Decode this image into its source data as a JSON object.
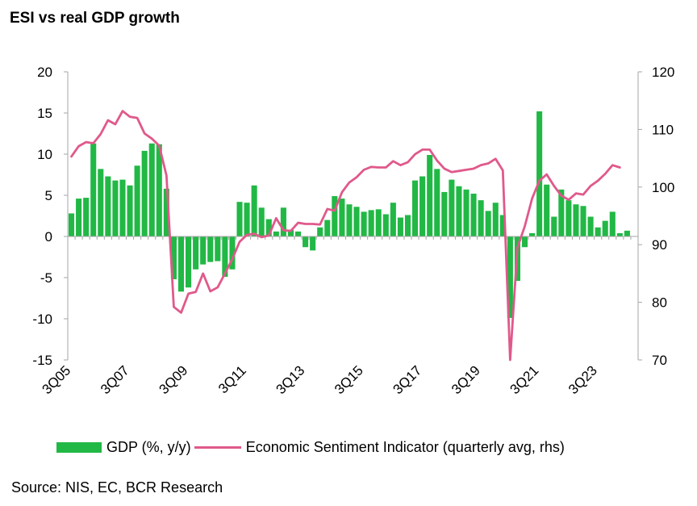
{
  "title": "ESI vs real GDP growth",
  "source": "Source: NIS, EC, BCR Research",
  "colors": {
    "gdp": "#21b845",
    "esi": "#e0598b",
    "axis": "#a6a6a6"
  },
  "chart_data": {
    "type": "bar+line",
    "title": "ESI vs real GDP growth",
    "x_tick_labels": [
      "3Q05",
      "3Q07",
      "3Q09",
      "3Q11",
      "3Q13",
      "3Q15",
      "3Q17",
      "3Q19",
      "3Q21",
      "3Q23"
    ],
    "x_tick_step": 8,
    "ylim_left": [
      -15,
      20
    ],
    "yticks_left": [
      -15,
      -10,
      -5,
      0,
      5,
      10,
      15,
      20
    ],
    "ylim_right": [
      70,
      120
    ],
    "yticks_right": [
      70,
      80,
      90,
      100,
      110,
      120
    ],
    "legend_position": "bottom",
    "grid": false,
    "series": [
      {
        "name": "GDP (%, y/y)",
        "type": "bar",
        "axis": "left",
        "values": [
          2.8,
          4.6,
          4.7,
          11.3,
          8.2,
          7.3,
          6.8,
          6.9,
          6.2,
          8.6,
          10.4,
          11.3,
          11.2,
          5.8,
          -5.2,
          -6.7,
          -6.2,
          -4.0,
          -3.4,
          -3.1,
          -3.0,
          -4.9,
          -4.0,
          4.2,
          4.1,
          6.2,
          3.5,
          2.1,
          0.6,
          3.5,
          0.8,
          0.6,
          -1.3,
          -1.7,
          1.1,
          2.0,
          4.9,
          4.6,
          3.9,
          3.6,
          3.0,
          3.2,
          3.3,
          2.7,
          4.1,
          2.3,
          2.6,
          6.8,
          7.3,
          9.9,
          8.2,
          5.4,
          6.9,
          6.1,
          5.7,
          5.2,
          4.4,
          3.1,
          4.1,
          2.6,
          -9.9,
          -5.4,
          -1.3,
          0.4,
          15.2,
          6.3,
          2.4,
          5.7,
          4.4,
          3.9,
          3.7,
          2.4,
          1.1,
          1.9,
          3.0,
          0.4,
          0.7
        ]
      },
      {
        "name": "Economic Sentiment Indicator (quarterly avg, rhs)",
        "type": "line",
        "axis": "right",
        "values": [
          105.3,
          107.1,
          107.8,
          107.6,
          109.2,
          111.6,
          110.9,
          113.2,
          112.2,
          112.0,
          109.3,
          108.4,
          107.2,
          102.0,
          79.2,
          78.2,
          81.5,
          81.8,
          85.0,
          81.9,
          82.6,
          85.0,
          87.5,
          90.5,
          91.7,
          91.9,
          91.3,
          91.6,
          94.6,
          92.5,
          92.4,
          93.8,
          93.6,
          93.6,
          93.5,
          96.2,
          95.9,
          99.1,
          100.8,
          101.7,
          103.0,
          103.5,
          103.4,
          103.4,
          104.5,
          103.8,
          104.3,
          105.7,
          106.5,
          106.5,
          104.6,
          103.2,
          102.6,
          102.8,
          103.0,
          103.2,
          103.8,
          104.1,
          104.9,
          102.9,
          70.0,
          89.5,
          93.2,
          98.0,
          101.1,
          102.2,
          100.2,
          98.5,
          97.8,
          98.9,
          98.7,
          100.2,
          101.1,
          102.3,
          103.8,
          103.4
        ]
      }
    ]
  }
}
